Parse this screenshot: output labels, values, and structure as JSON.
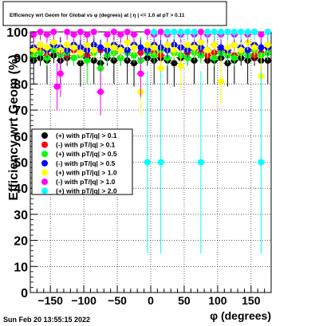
{
  "chart_data": {
    "type": "scatter",
    "title": "Efficiency wrt Geom for Global vs φ (degrees) at | η | <= 1.0 at pT > 0.11",
    "xlabel": "φ (degrees)",
    "ylabel": "Efficiency wrt Geom (%)",
    "xlim": [
      -180,
      180
    ],
    "ylim": [
      0,
      100
    ],
    "x_ticks": [
      -150,
      -100,
      -50,
      0,
      50,
      100,
      150
    ],
    "x_tick_labels": [
      "−150",
      "−100",
      "−50",
      "0",
      "50",
      "100",
      "150"
    ],
    "y_ticks": [
      0,
      10,
      20,
      30,
      40,
      50,
      60,
      70,
      80,
      90,
      100
    ],
    "y_tick_labels": [
      "0",
      "10",
      "20",
      "30",
      "40",
      "50",
      "60",
      "70",
      "80",
      "90",
      "100"
    ],
    "grid": true,
    "legend_position": "middle-left",
    "timestamp": "Sun Feb 20 13:55:15 2022",
    "series": [
      {
        "name": "(+) with pT/|q| > 0.1",
        "color": "#000000",
        "x": [
          -175,
          -165,
          -155,
          -145,
          -135,
          -125,
          -115,
          -105,
          -95,
          -85,
          -75,
          -65,
          -55,
          -45,
          -35,
          -25,
          -15,
          -5,
          5,
          15,
          25,
          35,
          45,
          55,
          65,
          75,
          85,
          95,
          105,
          115,
          125,
          135,
          145,
          155,
          165,
          175
        ],
        "y": [
          89,
          90,
          89,
          91,
          89,
          90,
          90,
          88,
          90,
          89,
          88,
          90,
          89,
          90,
          89,
          88,
          89,
          90,
          89,
          90,
          89,
          88,
          90,
          90,
          89,
          91,
          89,
          89,
          90,
          88,
          89,
          90,
          89,
          90,
          89,
          89
        ]
      },
      {
        "name": "(-) with pT/|q| > 0.1",
        "color": "#ff0000",
        "x": [
          -175,
          -165,
          -155,
          -145,
          -135,
          -125,
          -115,
          -105,
          -95,
          -85,
          -75,
          -65,
          -55,
          -45,
          -35,
          -25,
          -15,
          -5,
          5,
          15,
          25,
          35,
          45,
          55,
          65,
          75,
          85,
          95,
          105,
          115,
          125,
          135,
          145,
          155,
          165,
          175
        ],
        "y": [
          92,
          93,
          91,
          93,
          92,
          91,
          93,
          92,
          91,
          92,
          93,
          91,
          92,
          93,
          92,
          91,
          92,
          93,
          92,
          91,
          93,
          92,
          91,
          92,
          93,
          92,
          91,
          92,
          93,
          92,
          91,
          92,
          93,
          91,
          92,
          92
        ]
      },
      {
        "name": "(+) with pT/|q| > 0.5",
        "color": "#00ff00",
        "x": [
          -175,
          -165,
          -155,
          -145,
          -135,
          -125,
          -115,
          -105,
          -95,
          -85,
          -75,
          -65,
          -55,
          -45,
          -35,
          -25,
          -15,
          -5,
          5,
          15,
          25,
          35,
          45,
          55,
          65,
          75,
          85,
          95,
          105,
          115,
          125,
          135,
          145,
          155,
          165,
          175
        ],
        "y": [
          91,
          92,
          90,
          93,
          91,
          92,
          90,
          91,
          89,
          92,
          86,
          91,
          92,
          90,
          92,
          91,
          89,
          92,
          91,
          93,
          90,
          92,
          91,
          90,
          92,
          91,
          93,
          90,
          92,
          91,
          90,
          92,
          91,
          93,
          91,
          92
        ]
      },
      {
        "name": "(-) with pT/|q| > 0.5",
        "color": "#0000ff",
        "x": [
          -175,
          -165,
          -155,
          -145,
          -135,
          -125,
          -115,
          -105,
          -95,
          -85,
          -75,
          -65,
          -55,
          -45,
          -35,
          -25,
          -15,
          -5,
          5,
          15,
          25,
          35,
          45,
          55,
          65,
          75,
          85,
          95,
          105,
          115,
          125,
          135,
          145,
          155,
          165,
          175
        ],
        "y": [
          94,
          95,
          93,
          95,
          94,
          93,
          95,
          94,
          93,
          95,
          94,
          93,
          95,
          94,
          93,
          95,
          94,
          93,
          95,
          94,
          93,
          95,
          94,
          93,
          95,
          94,
          93,
          95,
          94,
          93,
          95,
          94,
          93,
          95,
          94,
          94
        ]
      },
      {
        "name": "(+) with pT/|q| > 1.0",
        "color": "#ffff00",
        "x": [
          -175,
          -165,
          -155,
          -145,
          -135,
          -125,
          -115,
          -105,
          -95,
          -85,
          -75,
          -65,
          -55,
          -45,
          -35,
          -25,
          -15,
          -5,
          5,
          15,
          25,
          35,
          45,
          55,
          65,
          75,
          85,
          95,
          105,
          115,
          125,
          135,
          145,
          155,
          165,
          175
        ],
        "y": [
          93,
          95,
          94,
          96,
          93,
          95,
          94,
          92,
          95,
          93,
          77,
          95,
          94,
          93,
          96,
          94,
          77,
          95,
          94,
          86,
          95,
          93,
          87,
          95,
          94,
          96,
          93,
          95,
          81,
          94,
          95,
          93,
          96,
          94,
          83,
          95
        ]
      },
      {
        "name": "(-) with pT/|q| > 1.0",
        "color": "#ff00ff",
        "x": [
          -175,
          -165,
          -155,
          -145,
          -140,
          -135,
          -125,
          -115,
          -105,
          -95,
          -85,
          -75,
          -65,
          -55,
          -45,
          -35,
          -25,
          -15,
          -5,
          5,
          15,
          25,
          35,
          45,
          55,
          65,
          75,
          85,
          95,
          105,
          115,
          125,
          135,
          145,
          155,
          165,
          175
        ],
        "y": [
          99,
          100,
          99,
          100,
          79,
          84,
          100,
          99,
          100,
          99,
          100,
          77,
          99,
          100,
          99,
          100,
          99,
          84,
          100,
          99,
          100,
          99,
          100,
          99,
          100,
          99,
          100,
          99,
          100,
          99,
          100,
          99,
          100,
          99,
          100,
          99,
          100
        ]
      },
      {
        "name": "(+) with pT/|q| > 2.0",
        "color": "#00ffff",
        "x": [
          -5,
          5,
          15,
          25,
          35,
          45,
          55,
          65,
          75,
          85,
          95,
          105,
          115,
          125,
          135,
          145,
          155,
          165,
          175
        ],
        "y": [
          50,
          100,
          50,
          100,
          100,
          100,
          100,
          100,
          50,
          100,
          100,
          100,
          100,
          100,
          100,
          100,
          100,
          50,
          100
        ]
      }
    ]
  }
}
